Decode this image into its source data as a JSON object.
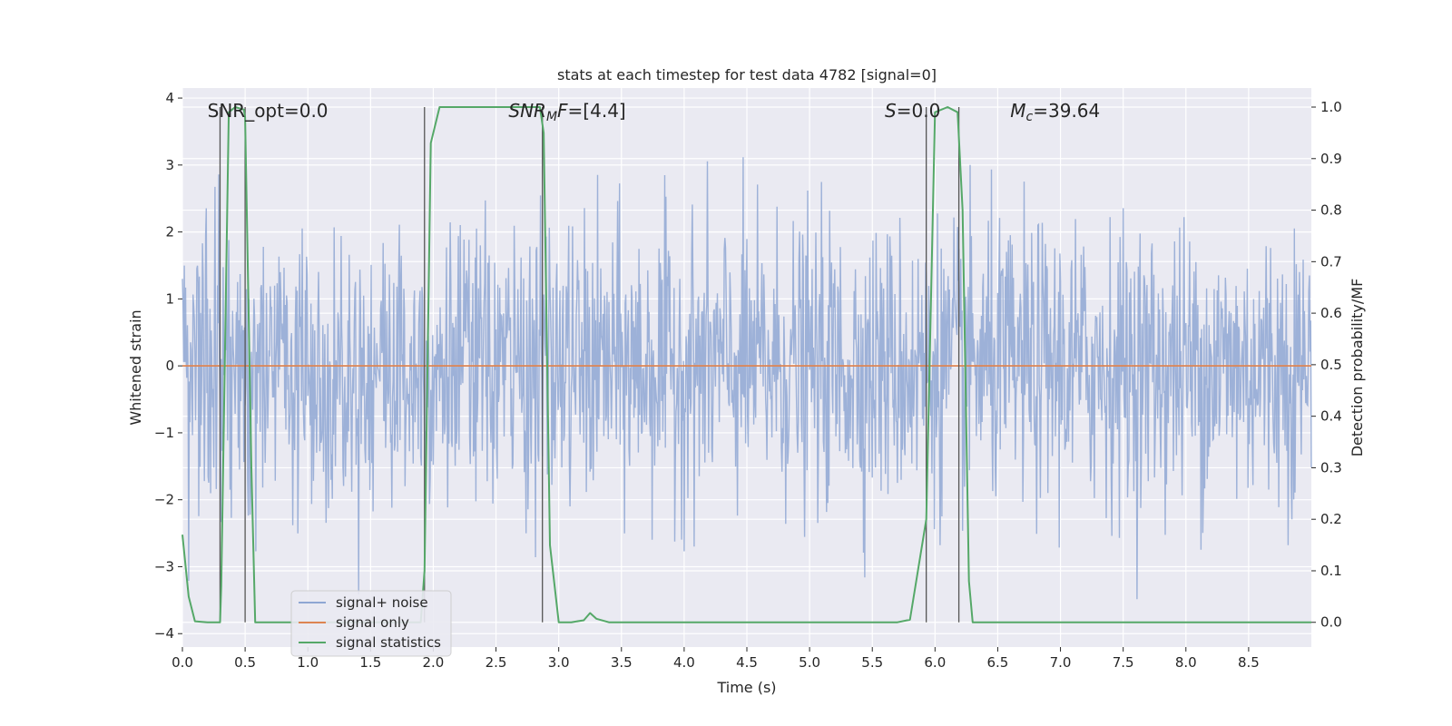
{
  "chart_data": {
    "type": "line",
    "title": "stats at each timestep for test data 4782 [signal=0]",
    "xlabel": "Time (s)",
    "ylabel": "Whitened strain",
    "y2label": "Detection probability/MF",
    "xlim": [
      0,
      9
    ],
    "ylim": [
      -4.2,
      4.15
    ],
    "y2lim": [
      -0.048,
      1.037
    ],
    "grid": true,
    "legend_position": "lower-left",
    "x_ticks": [
      "0.0",
      "0.5",
      "1.0",
      "1.5",
      "2.0",
      "2.5",
      "3.0",
      "3.5",
      "4.0",
      "4.5",
      "5.0",
      "5.5",
      "6.0",
      "6.5",
      "7.0",
      "7.5",
      "8.0",
      "8.5"
    ],
    "y_ticks": [
      "4",
      "3",
      "2",
      "1",
      "0",
      "−1",
      "−2",
      "−3",
      "−4"
    ],
    "y2_ticks": [
      "1.0",
      "0.9",
      "0.8",
      "0.7",
      "0.6",
      "0.5",
      "0.4",
      "0.3",
      "0.2",
      "0.1",
      "0.0"
    ],
    "annotations": [
      {
        "text": "SNR_opt=0.0",
        "x": 0.2,
        "y": 3.8
      },
      {
        "text": "SNR_MF=[4.4]",
        "x": 2.6,
        "y": 3.8
      },
      {
        "text": "S=0.0",
        "x": 5.6,
        "y": 3.8
      },
      {
        "text": "M_c=39.64",
        "x": 6.6,
        "y": 3.8
      }
    ],
    "vertical_lines": [
      0.3,
      0.5,
      1.93,
      2.87,
      5.93,
      6.19
    ],
    "series": [
      {
        "name": "signal+ noise",
        "color": "#8fa7d3",
        "axis": "left",
        "description_points": "noise band",
        "amplitude": {
          "typical": 1.6,
          "peak": 3.5
        },
        "x_range": [
          0,
          9
        ]
      },
      {
        "name": "signal only",
        "color": "#dd8452",
        "axis": "left",
        "x": [
          0,
          9
        ],
        "y": [
          0,
          0
        ]
      },
      {
        "name": "signal statistics",
        "color": "#55a868",
        "axis": "right",
        "x": [
          0.0,
          0.05,
          0.1,
          0.2,
          0.3,
          0.31,
          0.37,
          0.42,
          0.49,
          0.5,
          0.55,
          0.58,
          0.7,
          1.0,
          1.5,
          1.9,
          1.93,
          1.98,
          2.05,
          2.5,
          2.85,
          2.88,
          2.93,
          3.0,
          3.1,
          3.2,
          3.25,
          3.3,
          3.4,
          4.0,
          5.0,
          5.7,
          5.8,
          5.93,
          6.0,
          6.1,
          6.18,
          6.22,
          6.27,
          6.3,
          7.0,
          8.0,
          9.0
        ],
        "y": [
          0.17,
          0.05,
          0.002,
          0.0,
          0.0,
          0.07,
          0.99,
          1.0,
          0.995,
          0.98,
          0.3,
          0.0,
          0.0,
          0.0,
          0.0,
          0.0,
          0.1,
          0.93,
          1.0,
          1.0,
          1.0,
          0.95,
          0.15,
          0.0,
          0.0,
          0.004,
          0.018,
          0.007,
          0.0,
          0.0,
          0.0,
          0.0,
          0.005,
          0.2,
          0.99,
          1.0,
          0.99,
          0.8,
          0.08,
          0.0,
          0.0,
          0.0,
          0.0
        ]
      }
    ]
  }
}
